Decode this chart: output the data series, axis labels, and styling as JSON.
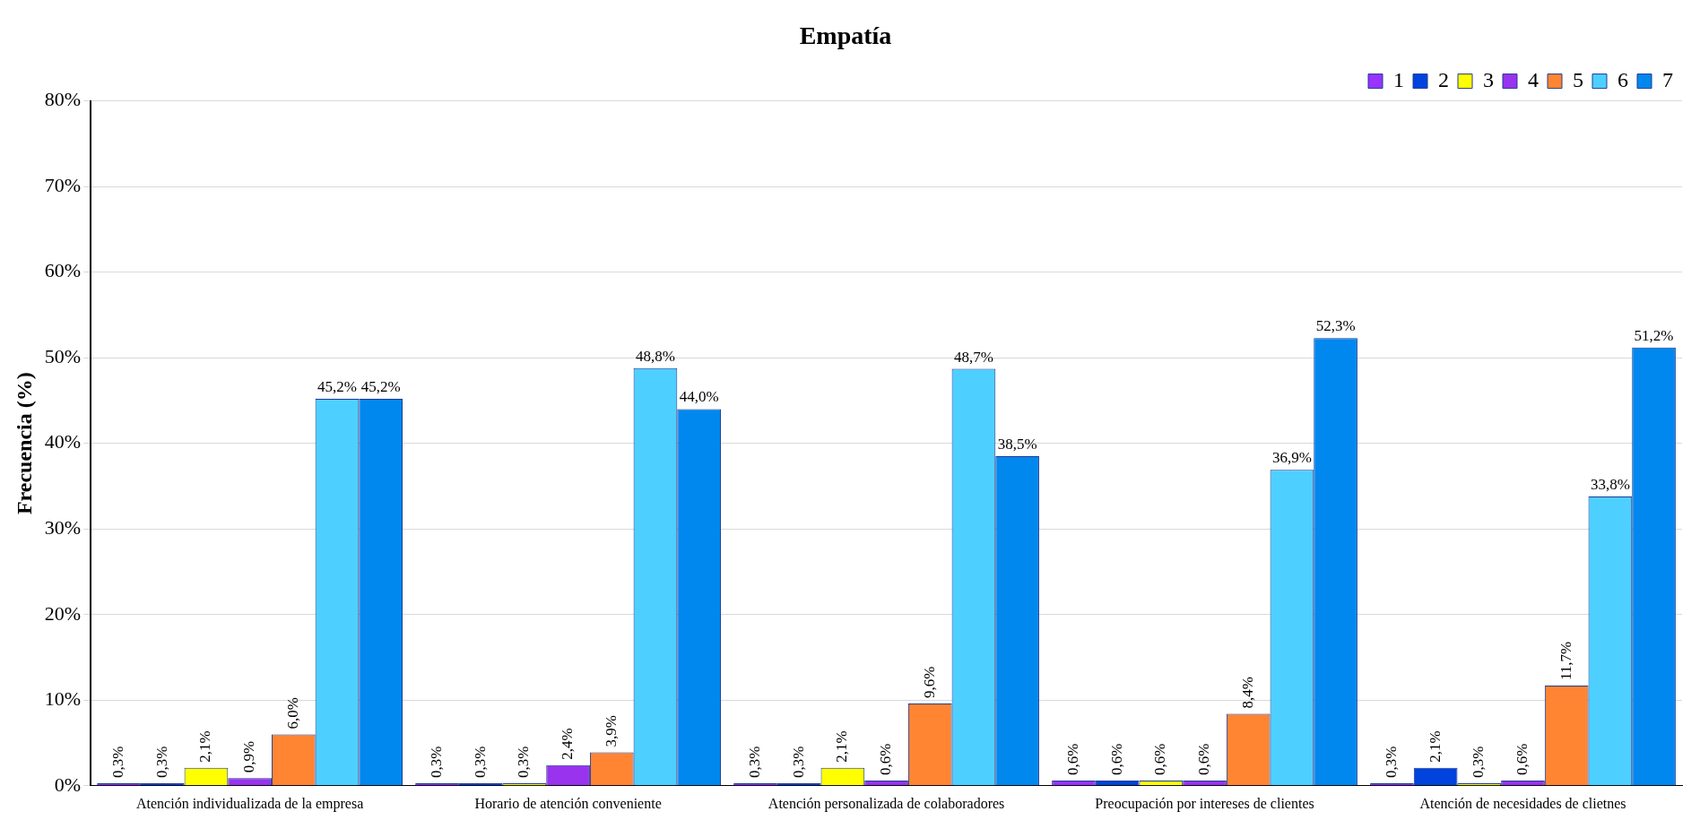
{
  "chart_data": {
    "type": "bar",
    "title": "Empatía",
    "ylabel": "Frecuencia (%)",
    "categories": [
      "Atención individualizada de la empresa",
      "Horario de atención conveniente",
      "Atención personalizada de colaboradores",
      "Preocupación por intereses de clientes",
      "Atención de necesidades de clietnes"
    ],
    "series": [
      {
        "name": "1",
        "color": "#9933ff",
        "values": [
          0.3,
          0.3,
          0.3,
          0.6,
          0.3
        ],
        "value_labels": [
          "0,3%",
          "0,3%",
          "0,3%",
          "0,6%",
          "0,3%"
        ]
      },
      {
        "name": "2",
        "color": "#0044dd",
        "values": [
          0.3,
          0.3,
          0.3,
          0.6,
          2.1
        ],
        "value_labels": [
          "0,3%",
          "0,3%",
          "0,3%",
          "0,6%",
          "2,1%"
        ]
      },
      {
        "name": "3",
        "color": "#ffff00",
        "values": [
          2.1,
          0.3,
          2.1,
          0.6,
          0.3
        ],
        "value_labels": [
          "2,1%",
          "0,3%",
          "2,1%",
          "0,6%",
          "0,3%"
        ]
      },
      {
        "name": "4",
        "color": "#9933ee",
        "values": [
          0.9,
          2.4,
          0.6,
          0.6,
          0.6
        ],
        "value_labels": [
          "0,9%",
          "2,4%",
          "0,6%",
          "0,6%",
          "0,6%"
        ]
      },
      {
        "name": "5",
        "color": "#ff8533",
        "values": [
          6.0,
          3.9,
          9.6,
          8.4,
          11.7
        ],
        "value_labels": [
          "6,0%",
          "3,9%",
          "9,6%",
          "8,4%",
          "11,7%"
        ]
      },
      {
        "name": "6",
        "color": "#4dd0ff",
        "values": [
          45.2,
          48.8,
          48.7,
          36.9,
          33.8
        ],
        "value_labels": [
          "45,2%",
          "48,8%",
          "48,7%",
          "36,9%",
          "33,8%"
        ]
      },
      {
        "name": "7",
        "color": "#0088ee",
        "values": [
          45.2,
          44.0,
          38.5,
          52.3,
          51.2
        ],
        "value_labels": [
          "45,2%",
          "44,0%",
          "38,5%",
          "52,3%",
          "51,2%"
        ]
      }
    ],
    "ylim": [
      0,
      80
    ],
    "yticks": [
      {
        "value": 0,
        "label": "0%"
      },
      {
        "value": 10,
        "label": "10%"
      },
      {
        "value": 20,
        "label": "20%"
      },
      {
        "value": 30,
        "label": "30%"
      },
      {
        "value": 40,
        "label": "40%"
      },
      {
        "value": 50,
        "label": "50%"
      },
      {
        "value": 60,
        "label": "60%"
      },
      {
        "value": 70,
        "label": "70%"
      },
      {
        "value": 80,
        "label": "80%"
      }
    ],
    "grid": "y",
    "legend": "top right"
  }
}
